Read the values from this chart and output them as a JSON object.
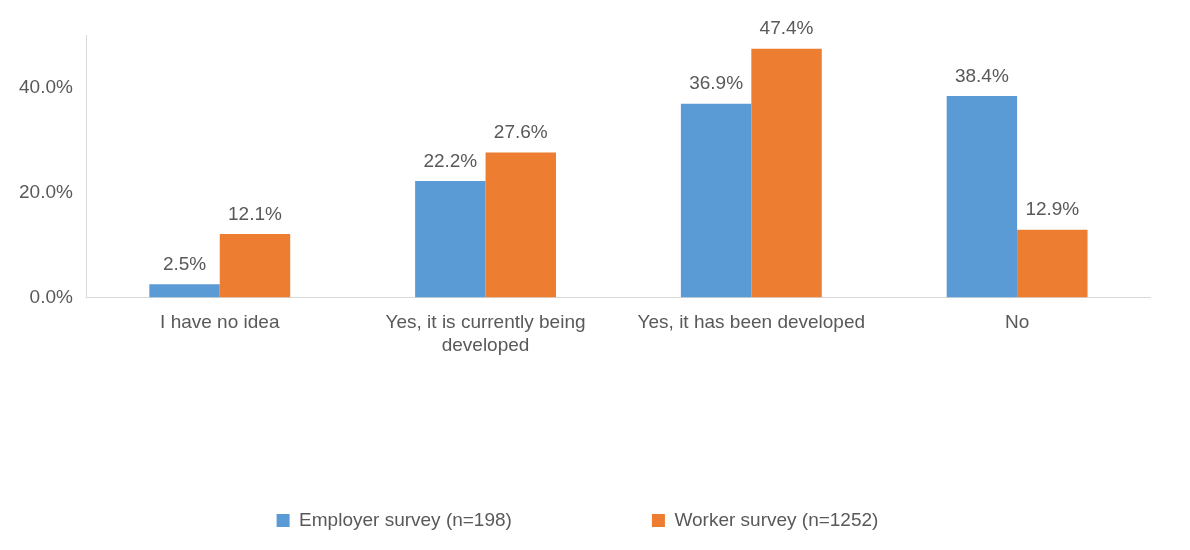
{
  "chart_data": {
    "type": "bar",
    "categories": [
      "I have no idea",
      "Yes, it is currently being developed",
      "Yes, it has been developed",
      "No"
    ],
    "series": [
      {
        "name": "Employer survey (n=198)",
        "color": "#5b9bd5",
        "values": [
          2.5,
          22.2,
          36.9,
          38.4
        ],
        "value_labels": [
          "2.5%",
          "22.2%",
          "36.9%",
          "38.4%"
        ]
      },
      {
        "name": "Worker survey (n=1252)",
        "color": "#ed7d31",
        "values": [
          12.1,
          27.6,
          47.4,
          12.9
        ],
        "value_labels": [
          "12.1%",
          "27.6%",
          "47.4%",
          "12.9%"
        ]
      }
    ],
    "ylim": [
      0,
      50
    ],
    "yticks": [
      {
        "value": 0,
        "label": "0.0%"
      },
      {
        "value": 20,
        "label": "20.0%"
      },
      {
        "value": 40,
        "label": "40.0%"
      }
    ],
    "grid": false,
    "legend": "bottom"
  }
}
